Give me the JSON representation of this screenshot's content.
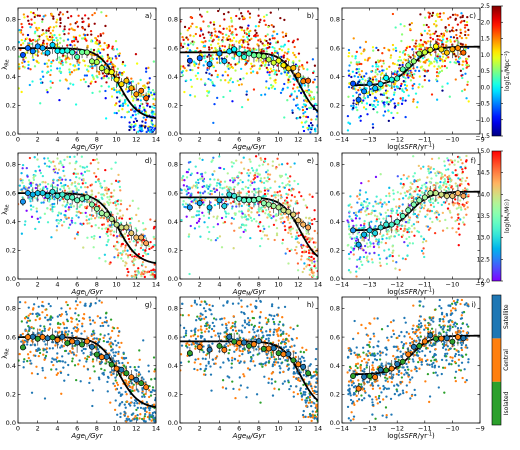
{
  "chart_data": {
    "type": "scatter",
    "layout": "3x3 grid of scatter panels with binned means and a fitted curve; each row has its own colorbar",
    "columns": [
      {
        "xlabel": "Age_L/Gyr",
        "xlabel_parts": [
          "Age",
          "L",
          "/Gyr"
        ],
        "xlim": [
          0,
          14
        ],
        "xticks": [
          0,
          2,
          4,
          6,
          8,
          10,
          12,
          14
        ],
        "fit": {
          "plateau": 0.6,
          "drop_center": 10.2,
          "width": 2.2,
          "floor": 0.1
        },
        "means": [
          [
            0.5,
            0.54
          ],
          [
            1,
            0.6
          ],
          [
            1.5,
            0.59
          ],
          [
            2,
            0.6
          ],
          [
            2.5,
            0.6
          ],
          [
            3,
            0.58
          ],
          [
            3.5,
            0.61
          ],
          [
            4,
            0.58
          ],
          [
            4.5,
            0.59
          ],
          [
            5,
            0.57
          ],
          [
            5.5,
            0.57
          ],
          [
            6,
            0.55
          ],
          [
            6.5,
            0.56
          ],
          [
            7,
            0.57
          ],
          [
            7.5,
            0.52
          ],
          [
            8,
            0.49
          ],
          [
            8.5,
            0.46
          ],
          [
            9,
            0.45
          ],
          [
            9.5,
            0.42
          ],
          [
            10,
            0.38
          ],
          [
            10.5,
            0.36
          ],
          [
            11,
            0.36
          ],
          [
            11.5,
            0.32
          ],
          [
            12,
            0.29
          ],
          [
            12.5,
            0.29
          ],
          [
            13,
            0.25
          ]
        ]
      },
      {
        "xlabel": "Age_M/Gyr",
        "xlabel_parts": [
          "Age",
          "M",
          "/Gyr"
        ],
        "xlim": [
          0,
          14
        ],
        "xticks": [
          0,
          2,
          4,
          6,
          8,
          10,
          12,
          14
        ],
        "fit": {
          "plateau": 0.57,
          "drop_center": 12.2,
          "width": 2.0,
          "floor": 0.1
        },
        "means": [
          [
            1,
            0.5
          ],
          [
            2,
            0.53
          ],
          [
            3,
            0.5
          ],
          [
            4,
            0.55
          ],
          [
            4.5,
            0.51
          ],
          [
            5,
            0.59
          ],
          [
            5.5,
            0.58
          ],
          [
            6,
            0.56
          ],
          [
            6.5,
            0.55
          ],
          [
            7,
            0.55
          ],
          [
            7.5,
            0.55
          ],
          [
            8,
            0.56
          ],
          [
            8.5,
            0.53
          ],
          [
            9,
            0.52
          ],
          [
            9.5,
            0.51
          ],
          [
            10,
            0.5
          ],
          [
            10.5,
            0.48
          ],
          [
            11,
            0.47
          ],
          [
            11.5,
            0.45
          ],
          [
            12,
            0.41
          ],
          [
            12.5,
            0.38
          ],
          [
            13,
            0.36
          ]
        ]
      },
      {
        "xlabel": "log(sSFR/yr^-1)",
        "xlabel_parts": [
          "log(",
          "sSFR",
          "/yr",
          "-1",
          ")"
        ],
        "xlim": [
          -14,
          -9
        ],
        "xticks": [
          -14,
          -13,
          -12,
          -11,
          -10,
          -9
        ],
        "fit": {
          "low": 0.34,
          "high": 0.61,
          "center": -11.5,
          "width": 0.35
        },
        "means": [
          [
            -13.6,
            0.34
          ],
          [
            -13.4,
            0.24
          ],
          [
            -13.2,
            0.31
          ],
          [
            -13.0,
            0.34
          ],
          [
            -12.8,
            0.32
          ],
          [
            -12.6,
            0.36
          ],
          [
            -12.4,
            0.38
          ],
          [
            -12.2,
            0.38
          ],
          [
            -12.0,
            0.4
          ],
          [
            -11.8,
            0.44
          ],
          [
            -11.6,
            0.48
          ],
          [
            -11.4,
            0.52
          ],
          [
            -11.2,
            0.55
          ],
          [
            -11.0,
            0.57
          ],
          [
            -10.8,
            0.6
          ],
          [
            -10.6,
            0.6
          ],
          [
            -10.4,
            0.59
          ],
          [
            -10.2,
            0.58
          ],
          [
            -10.0,
            0.58
          ],
          [
            -9.8,
            0.6
          ],
          [
            -9.6,
            0.58
          ]
        ]
      }
    ],
    "ylabel": "λ_Re",
    "ylim": [
      0,
      0.88
    ],
    "yticks": [
      0.0,
      0.2,
      0.4,
      0.6,
      0.8
    ],
    "panel_labels": [
      "a)",
      "b)",
      "c)",
      "d)",
      "e)",
      "f)",
      "g)",
      "h)",
      "i)"
    ],
    "rows": [
      {
        "color_by": "log(Σ_5/Mpc^-2)",
        "colorbar_label": "log(Σ₅/Mpc⁻²)",
        "colormap": "jet",
        "vmin": -1.5,
        "vmax": 2.5,
        "colorbar_ticks": [
          "2.5",
          "2.0",
          "1.5",
          "1.0",
          "0.5",
          "0.0",
          "-0.5",
          "-1.0",
          "-1.5"
        ]
      },
      {
        "color_by": "log(M_h/M_sun)",
        "colorbar_label": "log(Mₕ/M☉)",
        "colormap": "rainbow",
        "vmin": 12.0,
        "vmax": 15.0,
        "colorbar_ticks": [
          "15.0",
          "14.5",
          "14.0",
          "13.5",
          "13.0",
          "12.5",
          "12.0"
        ]
      },
      {
        "color_by": "environment class",
        "colormap": "categorical",
        "categories": [
          "Isolated",
          "Central",
          "Satellite"
        ],
        "category_colors": [
          "#2ca02c",
          "#ff7f0e",
          "#1f77b4"
        ]
      }
    ],
    "point_count_per_panel": 700,
    "fit_line_color": "#000000",
    "mean_marker_edge": "#000000"
  }
}
